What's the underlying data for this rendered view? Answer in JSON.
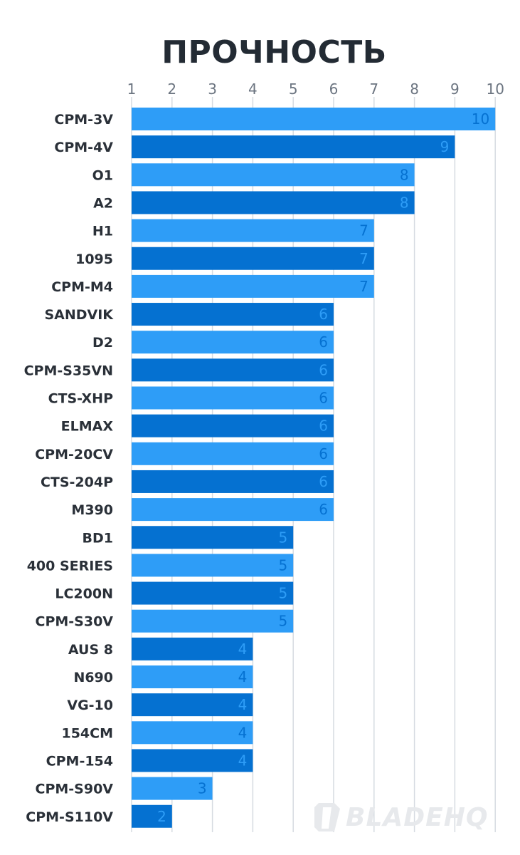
{
  "chart_data": {
    "type": "bar",
    "orientation": "horizontal",
    "title": "ПРОЧНОСТЬ",
    "xlim": [
      1,
      10
    ],
    "x_ticks": [
      "1",
      "2",
      "3",
      "4",
      "5",
      "6",
      "7",
      "8",
      "9",
      "10"
    ],
    "grid": true,
    "categories": [
      "CPM-3V",
      "CPM-4V",
      "O1",
      "A2",
      "H1",
      "1095",
      "CPM-M4",
      "SANDVIK",
      "D2",
      "CPM-S35VN",
      "CTS-XHP",
      "ELMAX",
      "CPM-20CV",
      "CTS-204P",
      "M390",
      "BD1",
      "400 SERIES",
      "LC200N",
      "CPM-S30V",
      "AUS 8",
      "N690",
      "VG-10",
      "154CM",
      "CPM-154",
      "CPM-S90V",
      "CPM-S110V"
    ],
    "values": [
      10,
      9,
      8,
      8,
      7,
      7,
      7,
      6,
      6,
      6,
      6,
      6,
      6,
      6,
      6,
      5,
      5,
      5,
      5,
      4,
      4,
      4,
      4,
      4,
      3,
      2
    ],
    "colors": {
      "bar_light": "#2e9df7",
      "bar_dark": "#0571d1",
      "grid": "#d6dbe1",
      "tick": "#6b7480",
      "label": "#2a3038"
    }
  },
  "watermark": {
    "text": "BLADEHQ",
    "icon": "bladehq-logo-icon"
  }
}
